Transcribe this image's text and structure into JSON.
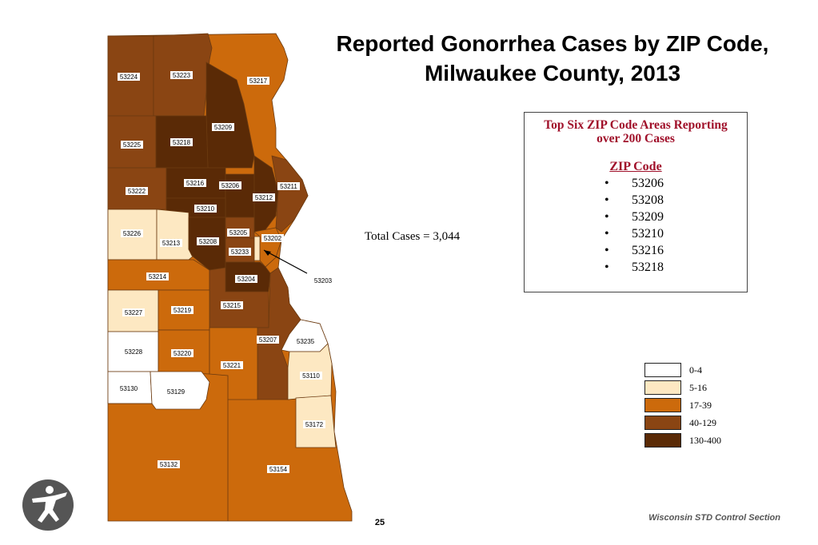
{
  "title_line1": "Reported Gonorrhea Cases by ZIP Code,",
  "title_line2": "Milwaukee County, 2013",
  "top_box": {
    "heading_line1": "Top Six ZIP Code Areas Reporting",
    "heading_line2": "over 200 Cases",
    "column_label": "ZIP Code",
    "bullet": "•",
    "zips": [
      "53206",
      "53208",
      "53209",
      "53210",
      "53216",
      "53218"
    ]
  },
  "total_cases": "Total Cases = 3,044",
  "legend": [
    {
      "label": "0-4",
      "color": "#ffffff"
    },
    {
      "label": "5-16",
      "color": "#fde8c2"
    },
    {
      "label": "17-39",
      "color": "#cc6a0c"
    },
    {
      "label": "40-129",
      "color": "#8a4513"
    },
    {
      "label": "130-400",
      "color": "#5a2a06"
    }
  ],
  "colors": {
    "c0": "#ffffff",
    "c1": "#fde8c2",
    "c2": "#cc6a0c",
    "c3": "#8a4513",
    "c4": "#5a2a06",
    "title_box": "#a0102a"
  },
  "zip_labels": {
    "z53224": "53224",
    "z53223": "53223",
    "z53217": "53217",
    "z53225": "53225",
    "z53218": "53218",
    "z53209": "53209",
    "z53222": "53222",
    "z53216": "53216",
    "z53206": "53206",
    "z53212": "53212",
    "z53211": "53211",
    "z53210": "53210",
    "z53226": "53226",
    "z53213": "53213",
    "z53208": "53208",
    "z53205": "53205",
    "z53202": "53202",
    "z53233": "53233",
    "z53203": "53203",
    "z53214": "53214",
    "z53204": "53204",
    "z53215": "53215",
    "z53227": "53227",
    "z53219": "53219",
    "z53207": "53207",
    "z53235": "53235",
    "z53228": "53228",
    "z53220": "53220",
    "z53221": "53221",
    "z53110": "53110",
    "z53130": "53130",
    "z53129": "53129",
    "z53172": "53172",
    "z53132": "53132",
    "z53154": "53154"
  },
  "page_number": "25",
  "footer": "Wisconsin STD Control Section",
  "logo_icon": "running-figure-logo-icon"
}
